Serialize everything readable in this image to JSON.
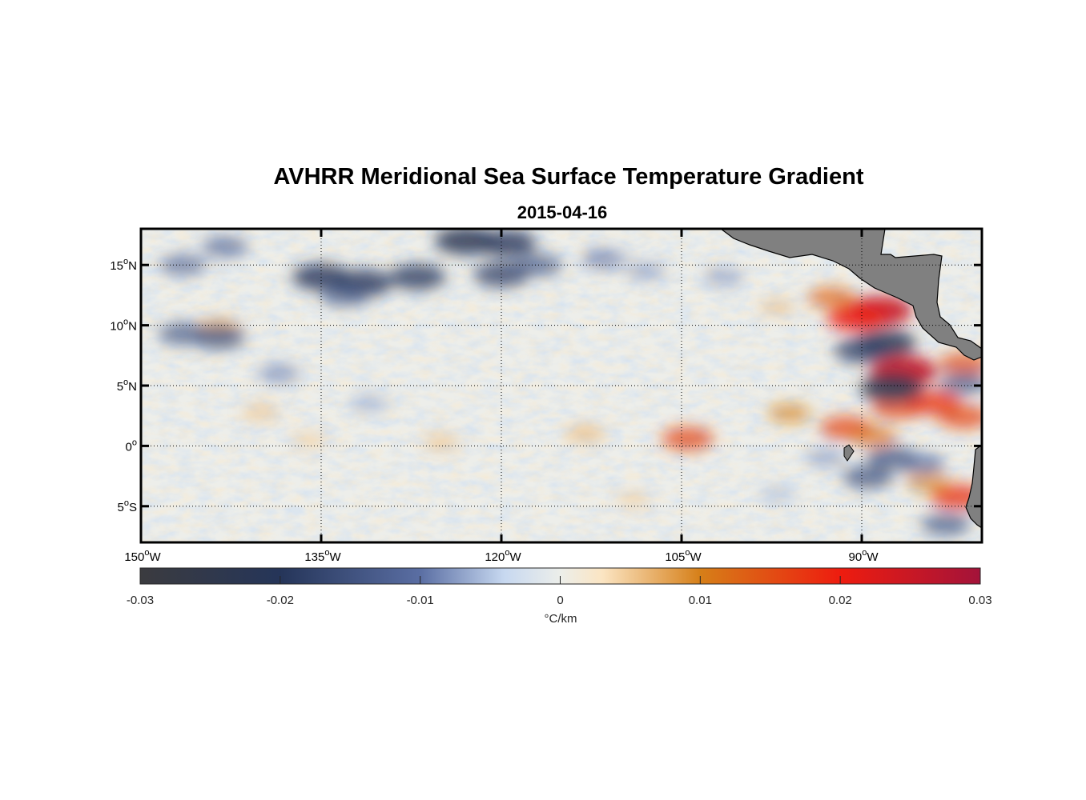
{
  "title": "AVHRR Meridional Sea Surface Temperature Gradient",
  "subtitle": "2015-04-16",
  "map": {
    "region": {
      "lon_min": -150,
      "lon_max": -80,
      "lat_min": -8,
      "lat_max": 18
    },
    "lon_ticks": [
      {
        "value": -150,
        "deg": "150",
        "hemi": "W"
      },
      {
        "value": -135,
        "deg": "135",
        "hemi": "W"
      },
      {
        "value": -120,
        "deg": "120",
        "hemi": "W"
      },
      {
        "value": -105,
        "deg": "105",
        "hemi": "W"
      },
      {
        "value": -90,
        "deg": "90",
        "hemi": "W"
      }
    ],
    "lat_ticks": [
      {
        "value": 15,
        "deg": "15",
        "hemi": "N"
      },
      {
        "value": 10,
        "deg": "10",
        "hemi": "N"
      },
      {
        "value": 5,
        "deg": "5",
        "hemi": "N"
      },
      {
        "value": 0,
        "deg": "0",
        "hemi": ""
      },
      {
        "value": -5,
        "deg": "5",
        "hemi": "S"
      }
    ],
    "gridlines": "dotted",
    "land_color": "#808080",
    "anomalies": [
      {
        "lon": -88.5,
        "lat": 11.2,
        "v": 0.025
      },
      {
        "lon": -90.5,
        "lat": 10.6,
        "v": 0.02
      },
      {
        "lon": -86.5,
        "lat": 6.2,
        "v": 0.026
      },
      {
        "lon": -87.0,
        "lat": 3.2,
        "v": 0.016
      },
      {
        "lon": -84.0,
        "lat": 3.6,
        "v": 0.018
      },
      {
        "lon": -81.5,
        "lat": 2.4,
        "v": 0.016
      },
      {
        "lon": -81.5,
        "lat": 6.8,
        "v": 0.015
      },
      {
        "lon": -91.3,
        "lat": 1.5,
        "v": 0.016
      },
      {
        "lon": -89.0,
        "lat": 0.8,
        "v": 0.012
      },
      {
        "lon": -96.0,
        "lat": 2.7,
        "v": 0.01
      },
      {
        "lon": -104.5,
        "lat": 0.6,
        "v": 0.016
      },
      {
        "lon": -92.5,
        "lat": 12.3,
        "v": 0.013
      },
      {
        "lon": -82.0,
        "lat": -4.2,
        "v": 0.018
      },
      {
        "lon": -84.5,
        "lat": -3.0,
        "v": 0.01
      },
      {
        "lon": -113.0,
        "lat": 1.0,
        "v": 0.007
      },
      {
        "lon": -125.0,
        "lat": 0.3,
        "v": 0.006
      },
      {
        "lon": -136.0,
        "lat": 0.5,
        "v": 0.005
      },
      {
        "lon": -140.0,
        "lat": 2.8,
        "v": 0.006
      },
      {
        "lon": -143.5,
        "lat": 9.9,
        "v": 0.008
      },
      {
        "lon": -109.0,
        "lat": -4.5,
        "v": 0.005
      },
      {
        "lon": -97.0,
        "lat": 11.5,
        "v": 0.006
      },
      {
        "lon": -88.0,
        "lat": 8.5,
        "v": -0.022
      },
      {
        "lon": -87.5,
        "lat": 4.8,
        "v": -0.024
      },
      {
        "lon": -90.0,
        "lat": 7.9,
        "v": -0.018
      },
      {
        "lon": -87.5,
        "lat": -1.0,
        "v": -0.015
      },
      {
        "lon": -85.0,
        "lat": -1.5,
        "v": -0.012
      },
      {
        "lon": -83.0,
        "lat": -6.5,
        "v": -0.014
      },
      {
        "lon": -89.5,
        "lat": -2.6,
        "v": -0.015
      },
      {
        "lon": -81.5,
        "lat": 5.2,
        "v": -0.014
      },
      {
        "lon": -135.0,
        "lat": 14.0,
        "v": -0.02
      },
      {
        "lon": -131.5,
        "lat": 13.5,
        "v": -0.02
      },
      {
        "lon": -127.0,
        "lat": 14.0,
        "v": -0.019
      },
      {
        "lon": -123.0,
        "lat": 17.0,
        "v": -0.022
      },
      {
        "lon": -119.5,
        "lat": 16.8,
        "v": -0.02
      },
      {
        "lon": -120.0,
        "lat": 14.2,
        "v": -0.018
      },
      {
        "lon": -117.0,
        "lat": 15.0,
        "v": -0.014
      },
      {
        "lon": -143.5,
        "lat": 9.0,
        "v": -0.016
      },
      {
        "lon": -146.5,
        "lat": 9.3,
        "v": -0.014
      },
      {
        "lon": -143.0,
        "lat": 16.5,
        "v": -0.012
      },
      {
        "lon": -146.5,
        "lat": 15.0,
        "v": -0.012
      },
      {
        "lon": -133.0,
        "lat": 12.5,
        "v": -0.014
      },
      {
        "lon": -108.0,
        "lat": 14.5,
        "v": -0.008
      },
      {
        "lon": -111.5,
        "lat": 15.5,
        "v": -0.01
      },
      {
        "lon": -101.5,
        "lat": 14.0,
        "v": -0.008
      },
      {
        "lon": -138.5,
        "lat": 6.0,
        "v": -0.009
      },
      {
        "lon": -131.0,
        "lat": 3.5,
        "v": -0.007
      },
      {
        "lon": -97.0,
        "lat": -4.0,
        "v": -0.006
      },
      {
        "lon": -93.0,
        "lat": -1.0,
        "v": -0.008
      }
    ]
  },
  "colorbar": {
    "min": -0.03,
    "max": 0.03,
    "ticks": [
      "-0.03",
      "-0.02",
      "-0.01",
      "0",
      "0.01",
      "0.02",
      "0.03"
    ],
    "tick_values": [
      -0.03,
      -0.02,
      -0.01,
      0,
      0.01,
      0.02,
      0.03
    ],
    "unit": "°C/km",
    "stops": [
      {
        "v": -0.03,
        "color": "#3b3b3f"
      },
      {
        "v": -0.02,
        "color": "#253559"
      },
      {
        "v": -0.01,
        "color": "#5a6ea3"
      },
      {
        "v": -0.004,
        "color": "#c7d8f0"
      },
      {
        "v": 0.0,
        "color": "#eceeea"
      },
      {
        "v": 0.003,
        "color": "#fbe5c3"
      },
      {
        "v": 0.01,
        "color": "#d67f18"
      },
      {
        "v": 0.02,
        "color": "#ee1c0f"
      },
      {
        "v": 0.03,
        "color": "#a3133a"
      }
    ]
  }
}
